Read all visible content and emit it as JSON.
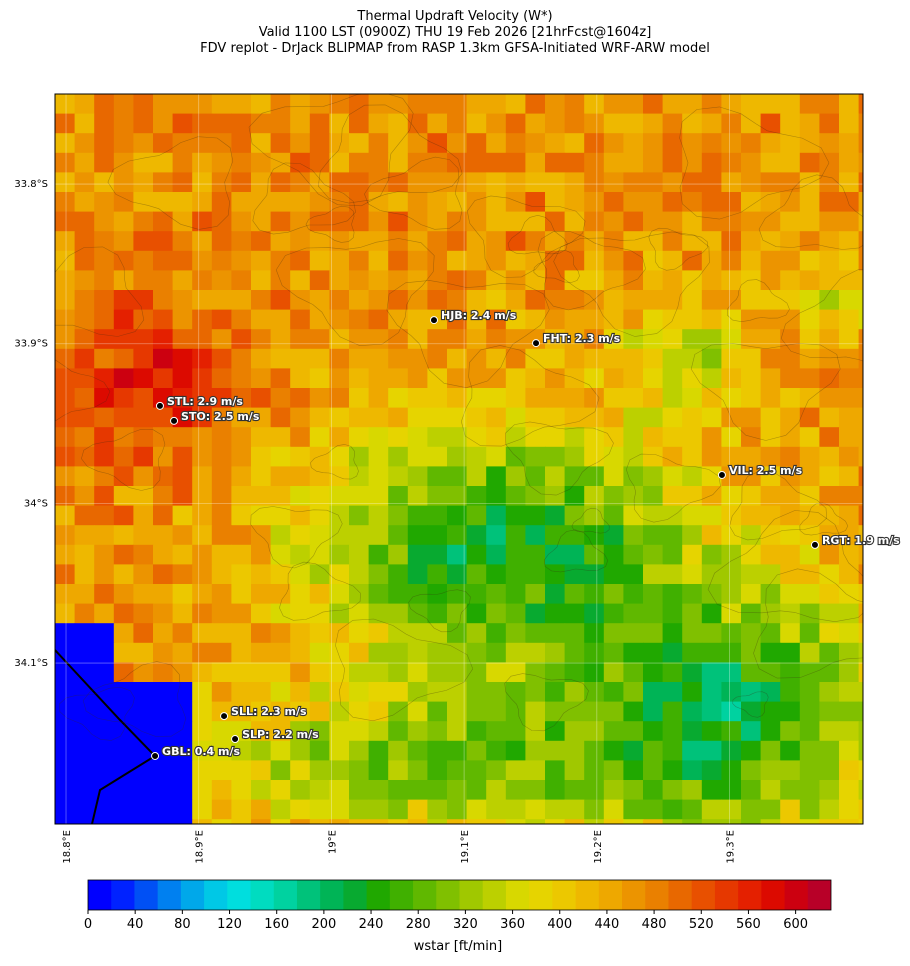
{
  "title": [
    "Thermal Updraft Velocity (W*)",
    "Valid 1100 LST (0900Z) THU 19 Feb 2026 [21hrFcst@1604z]",
    "FDV replot - DrJack BLIPMAP from RASP 1.3km GFSA-Initiated WRF-ARW model"
  ],
  "map": {
    "xlim": [
      18.7917,
      19.4006
    ],
    "ylim": [
      -34.2008,
      -33.7436
    ],
    "xticks": [
      {
        "value": 18.8,
        "label": "18.8°E"
      },
      {
        "value": 18.9,
        "label": "18.9°E"
      },
      {
        "value": 19.0,
        "label": "19°E"
      },
      {
        "value": 19.1,
        "label": "19.1°E"
      },
      {
        "value": 19.2,
        "label": "19.2°E"
      },
      {
        "value": 19.3,
        "label": "19.3°E"
      }
    ],
    "yticks": [
      {
        "value": -33.8,
        "label": "33.8°S"
      },
      {
        "value": -33.9,
        "label": "33.9°S"
      },
      {
        "value": -34.0,
        "label": "34°S"
      },
      {
        "value": -34.1,
        "label": "34.1°S"
      }
    ],
    "stations": [
      {
        "label": "STL: 2.9 m/s",
        "lon": 18.8708,
        "lat": -33.9389
      },
      {
        "label": "STO: 2.5 m/s",
        "lon": 18.8814,
        "lat": -33.9483
      },
      {
        "label": "HJB: 2.4 m/s",
        "lon": 19.0773,
        "lat": -33.8852
      },
      {
        "label": "FHT: 2.3 m/s",
        "lon": 19.1542,
        "lat": -33.8996
      },
      {
        "label": "VIL: 2.5 m/s",
        "lon": 19.2943,
        "lat": -33.9822
      },
      {
        "label": "RGT: 1.9 m/s",
        "lon": 19.3644,
        "lat": -34.026
      },
      {
        "label": "SLL: 2.3 m/s",
        "lon": 18.9191,
        "lat": -34.1332
      },
      {
        "label": "SLP: 2.2 m/s",
        "lon": 18.9274,
        "lat": -34.1476
      },
      {
        "label": "GBL: 0.4 m/s",
        "lon": 18.8671,
        "lat": -34.1582
      }
    ]
  },
  "colorbar": {
    "label": "wstar [ft/min]",
    "clim": [
      0,
      630
    ],
    "ticks": [
      0,
      40,
      80,
      120,
      160,
      200,
      240,
      280,
      320,
      360,
      400,
      440,
      480,
      520,
      560,
      600
    ],
    "colors": [
      "#0000ff",
      "#0022ff",
      "#0050f5",
      "#0080f0",
      "#00a8ea",
      "#00c8e6",
      "#00dede",
      "#00dcc0",
      "#00d2a0",
      "#00c27a",
      "#00b456",
      "#08aa30",
      "#20a800",
      "#40b000",
      "#60b800",
      "#80c000",
      "#a0c800",
      "#bcd000",
      "#d8d800",
      "#e6d400",
      "#ecc800",
      "#eeb800",
      "#eea800",
      "#ec9400",
      "#ea8000",
      "#e86800",
      "#e85000",
      "#e63800",
      "#e42000",
      "#dc0a00",
      "#cc0010",
      "#b80028"
    ]
  }
}
